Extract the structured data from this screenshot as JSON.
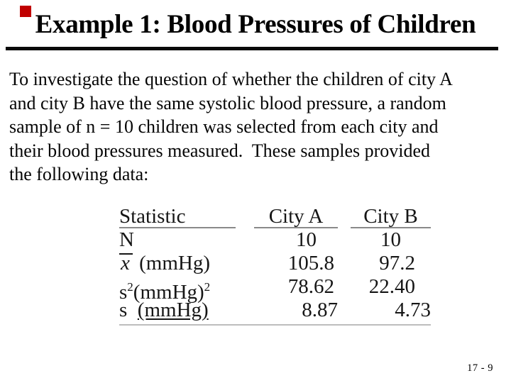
{
  "slide": {
    "title": "Example 1: Blood Pressures of Children",
    "slide_number": "17 - 9",
    "accent_color": "#c00000"
  },
  "body": {
    "lines": [
      "To investigate the question of whether the children of city A",
      "and city B have the same systolic blood pressure, a random",
      "sample of n = 10 children was selected from each city and",
      "their blood pressures measured.  These samples provided",
      "the following data:"
    ]
  },
  "table": {
    "headers": [
      "Statistic",
      "City A",
      "City B"
    ],
    "rows": [
      {
        "label_parts": [
          {
            "text": "N"
          }
        ],
        "city_a": "10",
        "city_b": "10"
      },
      {
        "label_parts": [
          {
            "text": "x",
            "style": "xbar"
          },
          {
            "text": " (mmHg)"
          }
        ],
        "city_a": "105.8",
        "city_b": "97.2"
      },
      {
        "label_parts": [
          {
            "text": "s"
          },
          {
            "text": "2",
            "style": "sup"
          },
          {
            "text": "(mmHg)"
          },
          {
            "text": "2",
            "style": "sup"
          }
        ],
        "city_a": "78.62",
        "city_b": "22.40"
      },
      {
        "label_parts": [
          {
            "text": "s  "
          },
          {
            "text": "(mmHg)",
            "style": "underline"
          }
        ],
        "city_a": "8.87",
        "city_b": "4.73"
      }
    ]
  }
}
